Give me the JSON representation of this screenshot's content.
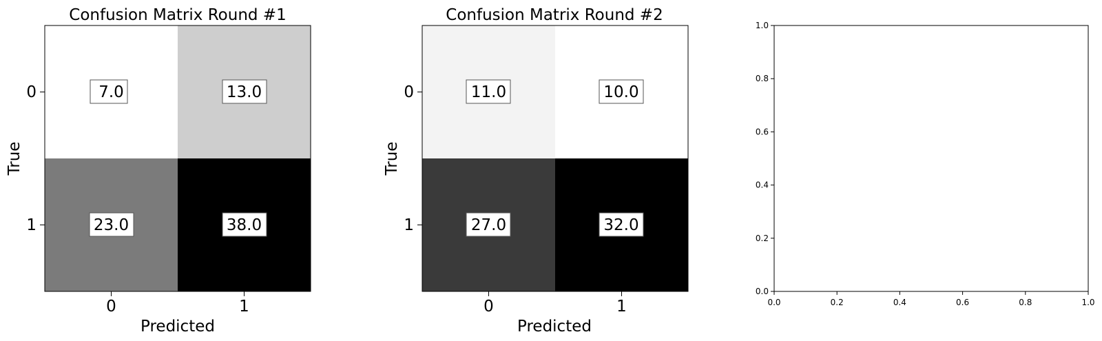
{
  "chart_data": [
    {
      "type": "heatmap",
      "title": "Confusion Matrix Round #1",
      "xlabel": "Predicted",
      "ylabel": "True",
      "x_ticks": [
        "0",
        "1"
      ],
      "y_ticks": [
        "0",
        "1"
      ],
      "values": [
        [
          7.0,
          13.0
        ],
        [
          23.0,
          38.0
        ]
      ],
      "labels": [
        [
          "7.0",
          "13.0"
        ],
        [
          "23.0",
          "38.0"
        ]
      ],
      "colormap": "grayscale (white = low, black = high)"
    },
    {
      "type": "heatmap",
      "title": "Confusion Matrix Round #2",
      "xlabel": "Predicted",
      "ylabel": "True",
      "x_ticks": [
        "0",
        "1"
      ],
      "y_ticks": [
        "0",
        "1"
      ],
      "values": [
        [
          11.0,
          10.0
        ],
        [
          27.0,
          32.0
        ]
      ],
      "labels": [
        [
          "11.0",
          "10.0"
        ],
        [
          "27.0",
          "32.0"
        ]
      ],
      "colormap": "grayscale (white = low, black = high)"
    },
    {
      "type": "scatter",
      "title": "",
      "xlabel": "",
      "ylabel": "",
      "xlim": [
        0.0,
        1.0
      ],
      "ylim": [
        0.0,
        1.0
      ],
      "x_ticks": [
        "0.0",
        "0.2",
        "0.4",
        "0.6",
        "0.8",
        "1.0"
      ],
      "y_ticks": [
        "0.0",
        "0.2",
        "0.4",
        "0.6",
        "0.8",
        "1.0"
      ],
      "series": []
    }
  ]
}
